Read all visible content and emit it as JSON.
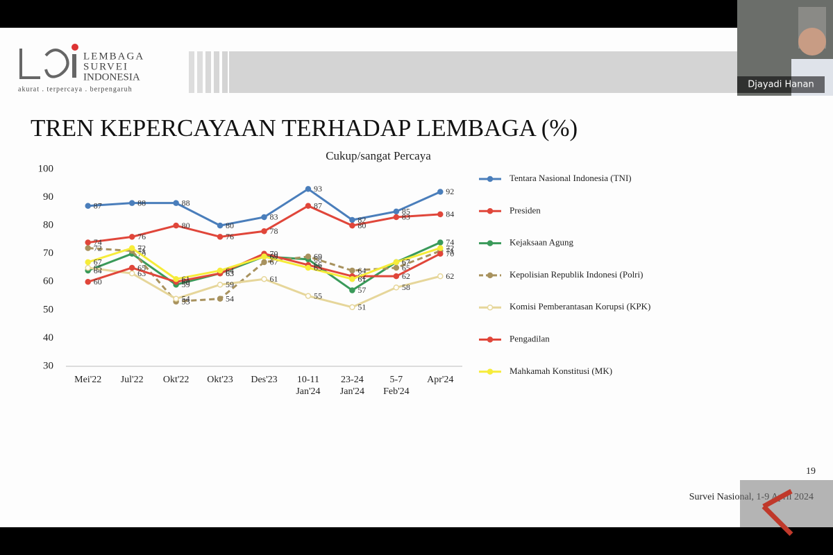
{
  "header": {
    "logo_lines": [
      "LEMBAGA",
      "SURVEI",
      "INDONESIA"
    ],
    "tagline": "akurat . terpercaya . berpengaruh"
  },
  "presenter": "Djayadi Hanan",
  "page_number": "19",
  "footer": "Survei Nasional, 1-9 April 2024",
  "chart_data": {
    "type": "line",
    "title": "TREN KEPERCAYAAN TERHADAP LEMBAGA (%)",
    "subtitle": "Cukup/sangat Percaya",
    "categories": [
      [
        "Mei'22"
      ],
      [
        "Jul'22"
      ],
      [
        "Okt'22"
      ],
      [
        "Okt'23"
      ],
      [
        "Des'23"
      ],
      [
        "10-11",
        "Jan'24"
      ],
      [
        "23-24",
        "Jan'24"
      ],
      [
        "5-7",
        "Feb'24"
      ],
      [
        "Apr'24"
      ]
    ],
    "ylim": [
      30,
      100
    ],
    "yticks": [
      30,
      40,
      50,
      60,
      70,
      80,
      90,
      100
    ],
    "grid": false,
    "legend": "right",
    "series": [
      {
        "name": "Tentara Nasional Indonesia (TNI)",
        "color": "#4a7ebb",
        "dash": false,
        "marker": "filled",
        "values": [
          87,
          88,
          88,
          80,
          83,
          93,
          82,
          85,
          92
        ]
      },
      {
        "name": "Presiden",
        "color": "#e0463a",
        "dash": false,
        "marker": "filled",
        "values": [
          74,
          76,
          80,
          76,
          78,
          87,
          80,
          83,
          84
        ]
      },
      {
        "name": "Kejaksaan Agung",
        "color": "#3a9a5a",
        "dash": false,
        "marker": "filled",
        "values": [
          64,
          70,
          59,
          63,
          69,
          68,
          57,
          67,
          74
        ]
      },
      {
        "name": "Kepolisian Republik Indonesi (Polri)",
        "color": "#a8925e",
        "dash": true,
        "marker": "filled",
        "values": [
          72,
          71,
          53,
          54,
          67,
          69,
          64,
          65,
          71
        ]
      },
      {
        "name": "Komisi Pemberantasan Korupsi (KPK)",
        "color": "#e6d69a",
        "dash": false,
        "marker": "hollow",
        "values": [
          65,
          63,
          54,
          59,
          61,
          55,
          51,
          58,
          62
        ]
      },
      {
        "name": "Pengadilan",
        "color": "#e0463a",
        "dash": false,
        "marker": "filled",
        "values": [
          60,
          65,
          60,
          63,
          70,
          66,
          62,
          62,
          70
        ]
      },
      {
        "name": "Mahkamah Konstitusi (MK)",
        "color": "#f6ec3a",
        "dash": false,
        "marker": "filled",
        "values": [
          67,
          72,
          61,
          64,
          69,
          65,
          61,
          67,
          72
        ]
      }
    ]
  }
}
